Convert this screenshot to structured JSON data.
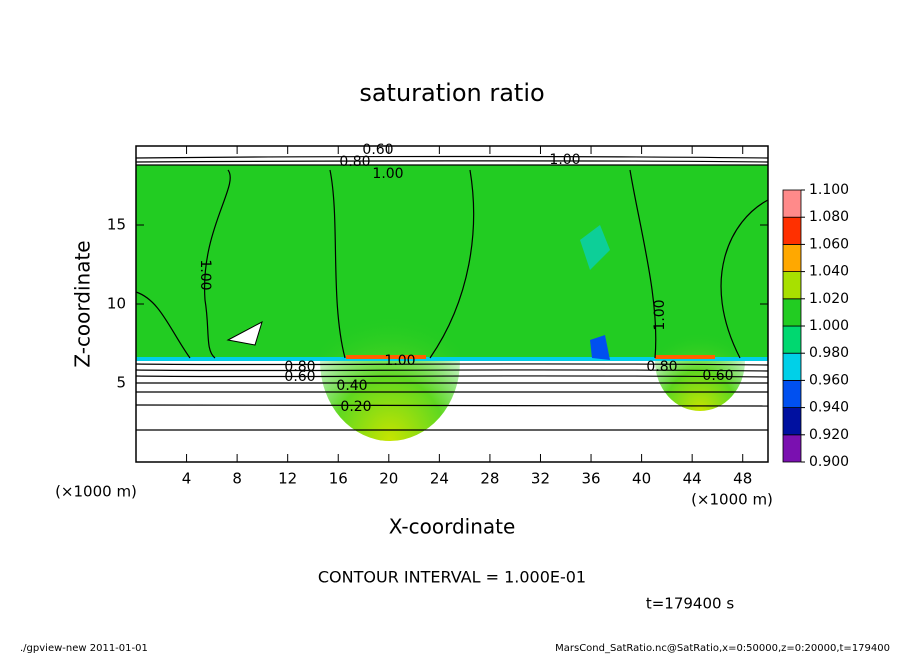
{
  "chart_data": {
    "type": "contour",
    "title": "saturation ratio",
    "xlabel": "X-coordinate",
    "ylabel": "Z-coordinate",
    "x_unit": "(×1000 m)",
    "y_unit": "(×1000 m)",
    "xlim": [
      0,
      50
    ],
    "ylim": [
      0,
      20
    ],
    "xticks": [
      4,
      8,
      12,
      16,
      20,
      24,
      28,
      32,
      36,
      40,
      44,
      48
    ],
    "yticks": [
      5,
      10,
      15
    ],
    "colorbar": {
      "ticks": [
        {
          "value": 0.9,
          "label": "0.900"
        },
        {
          "value": 0.92,
          "label": "0.920"
        },
        {
          "value": 0.94,
          "label": "0.940"
        },
        {
          "value": 0.96,
          "label": "0.960"
        },
        {
          "value": 0.98,
          "label": "0.980"
        },
        {
          "value": 1.0,
          "label": "1.000"
        },
        {
          "value": 1.02,
          "label": "1.020"
        },
        {
          "value": 1.04,
          "label": "1.040"
        },
        {
          "value": 1.06,
          "label": "1.060"
        },
        {
          "value": 1.08,
          "label": "1.080"
        },
        {
          "value": 1.1,
          "label": "1.100"
        }
      ],
      "colors": [
        "#7a10b0",
        "#0010a0",
        "#0050f0",
        "#00d0e8",
        "#00d870",
        "#22cc22",
        "#a8e000",
        "#ffa800",
        "#ff3000",
        "#ff8a8a"
      ]
    },
    "contour_labels": [
      "0.60",
      "0.80",
      "1.00",
      "1.00",
      "1.00",
      "0.80",
      "0.60",
      "1.00",
      "0.40",
      "0.20",
      "0.80",
      "0.60",
      "1.00"
    ],
    "contour_interval": "CONTOUR INTERVAL = 1.000E-01",
    "time": "t=179400 s",
    "footer_left": "./gpview-new  2011-01-01",
    "footer_right": "MarsCond_SatRatio.nc@SatRatio,x=0:50000,z=0:20000,t=179400"
  }
}
